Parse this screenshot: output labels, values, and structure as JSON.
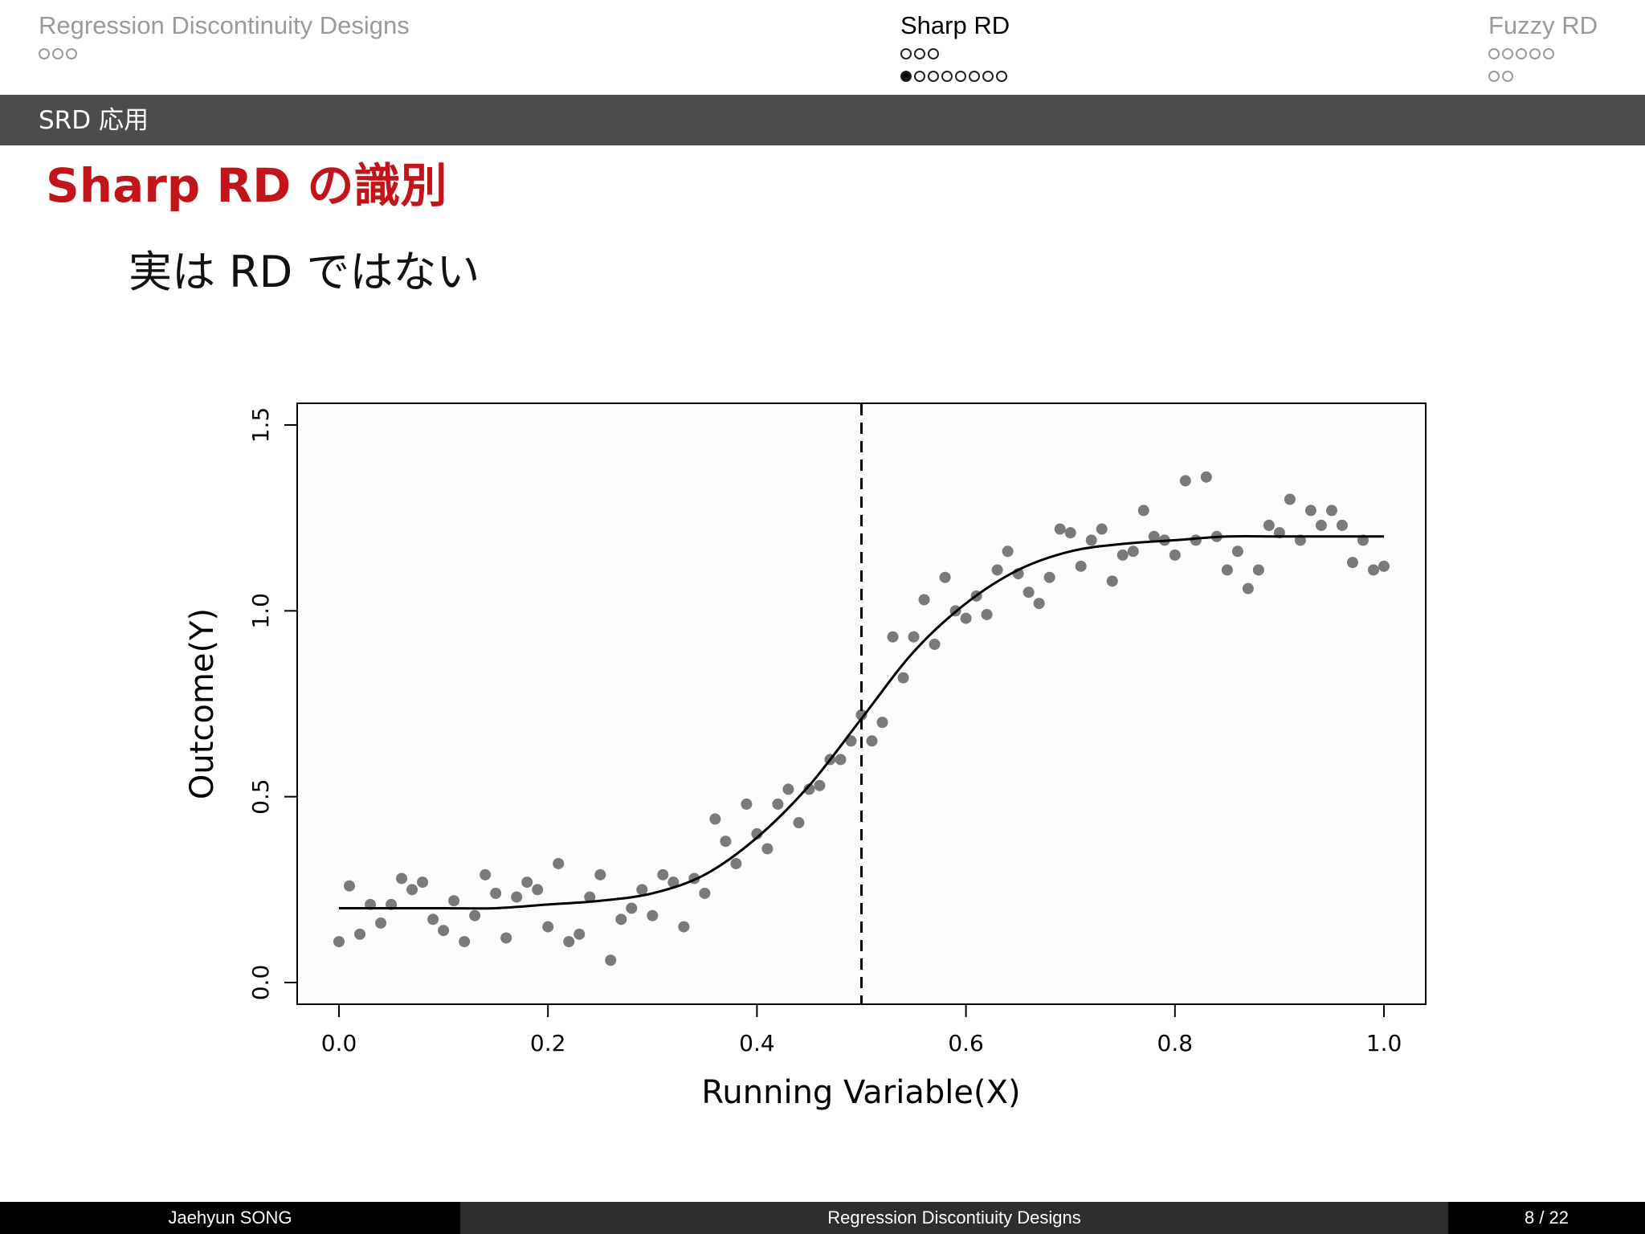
{
  "nav": {
    "sections": [
      {
        "title": "Regression Discontinuity Designs",
        "rows": [
          [
            0,
            0,
            0
          ]
        ]
      },
      {
        "title": "Sharp RD",
        "rows": [
          [
            0,
            0,
            0
          ],
          [
            1,
            0,
            0,
            0,
            0,
            0,
            0,
            0
          ]
        ]
      },
      {
        "title": "Fuzzy RD",
        "rows": [
          [
            0,
            0,
            0,
            0,
            0
          ],
          [
            0,
            0
          ]
        ]
      }
    ]
  },
  "frame": {
    "subtitle": "SRD 応用"
  },
  "slide": {
    "title": "Sharp RD の識別",
    "text": "実は RD ではない"
  },
  "chart_data": {
    "type": "scatter",
    "xlabel": "Running Variable(X)",
    "ylabel": "Outcome(Y)",
    "xlim": [
      0.0,
      1.0
    ],
    "ylim": [
      0.0,
      1.5
    ],
    "xticks": [
      "0.0",
      "0.2",
      "0.4",
      "0.6",
      "0.8",
      "1.0"
    ],
    "yticks": [
      "0.0",
      "0.5",
      "1.0",
      "1.5"
    ],
    "cutoff": 0.5,
    "grid": false,
    "colors": {
      "points": "#7a7a7a",
      "curve": "#000000",
      "cutoff_line": "#000000"
    },
    "fitted_curve": {
      "x": [
        0.0,
        0.05,
        0.1,
        0.15,
        0.2,
        0.25,
        0.3,
        0.35,
        0.4,
        0.45,
        0.5,
        0.55,
        0.6,
        0.65,
        0.7,
        0.75,
        0.8,
        0.85,
        0.9,
        0.95,
        1.0
      ],
      "y": [
        0.2,
        0.2,
        0.2,
        0.2,
        0.21,
        0.22,
        0.24,
        0.29,
        0.39,
        0.53,
        0.71,
        0.89,
        1.02,
        1.11,
        1.16,
        1.18,
        1.19,
        1.2,
        1.2,
        1.2,
        1.2
      ]
    },
    "points": {
      "x": [
        0.0,
        0.01,
        0.02,
        0.03,
        0.04,
        0.05,
        0.06,
        0.07,
        0.08,
        0.09,
        0.1,
        0.11,
        0.12,
        0.13,
        0.14,
        0.15,
        0.16,
        0.17,
        0.18,
        0.19,
        0.2,
        0.21,
        0.22,
        0.23,
        0.24,
        0.25,
        0.26,
        0.27,
        0.28,
        0.29,
        0.3,
        0.31,
        0.32,
        0.33,
        0.34,
        0.35,
        0.36,
        0.37,
        0.38,
        0.39,
        0.4,
        0.41,
        0.42,
        0.43,
        0.44,
        0.45,
        0.46,
        0.47,
        0.48,
        0.49,
        0.5,
        0.51,
        0.52,
        0.53,
        0.54,
        0.55,
        0.56,
        0.57,
        0.58,
        0.59,
        0.6,
        0.61,
        0.62,
        0.63,
        0.64,
        0.65,
        0.66,
        0.67,
        0.68,
        0.69,
        0.7,
        0.71,
        0.72,
        0.73,
        0.74,
        0.75,
        0.76,
        0.77,
        0.78,
        0.79,
        0.8,
        0.81,
        0.82,
        0.83,
        0.84,
        0.85,
        0.86,
        0.87,
        0.88,
        0.89,
        0.9,
        0.91,
        0.92,
        0.93,
        0.94,
        0.95,
        0.96,
        0.97,
        0.98,
        0.99,
        1.0
      ],
      "y": [
        0.11,
        0.26,
        0.13,
        0.21,
        0.16,
        0.21,
        0.28,
        0.25,
        0.27,
        0.17,
        0.14,
        0.22,
        0.11,
        0.18,
        0.29,
        0.24,
        0.12,
        0.23,
        0.27,
        0.25,
        0.15,
        0.32,
        0.11,
        0.13,
        0.23,
        0.29,
        0.06,
        0.17,
        0.2,
        0.25,
        0.18,
        0.29,
        0.27,
        0.15,
        0.28,
        0.24,
        0.44,
        0.38,
        0.32,
        0.48,
        0.4,
        0.36,
        0.48,
        0.52,
        0.43,
        0.52,
        0.53,
        0.6,
        0.6,
        0.65,
        0.72,
        0.65,
        0.7,
        0.93,
        0.82,
        0.93,
        1.03,
        0.91,
        1.09,
        1.0,
        0.98,
        1.04,
        0.99,
        1.11,
        1.16,
        1.1,
        1.05,
        1.02,
        1.09,
        1.22,
        1.21,
        1.12,
        1.19,
        1.22,
        1.08,
        1.15,
        1.16,
        1.27,
        1.2,
        1.19,
        1.15,
        1.35,
        1.19,
        1.36,
        1.2,
        1.11,
        1.16,
        1.06,
        1.11,
        1.23,
        1.21,
        1.3,
        1.19,
        1.27,
        1.23,
        1.27,
        1.23,
        1.13,
        1.19,
        1.11,
        1.12
      ]
    }
  },
  "footer": {
    "author": "Jaehyun SONG",
    "title": "Regression Discontiuity Designs",
    "page": "8 / 22"
  }
}
